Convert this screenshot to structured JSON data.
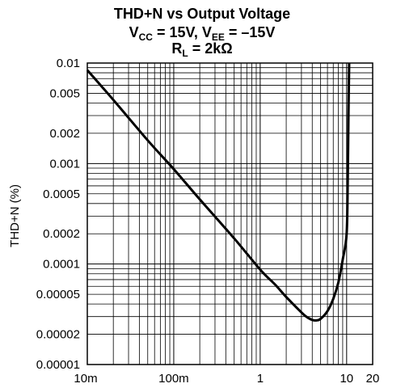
{
  "chart_data": {
    "type": "line",
    "title_line1": "THD+N vs Output Voltage",
    "title_line2": {
      "p1": "V",
      "s1": "CC",
      "p2": " = 15V, V",
      "s2": "EE",
      "p3": " = –15V"
    },
    "title_line3": {
      "p1": "R",
      "s1": "L",
      "p2": " = 2kΩ"
    },
    "xlabel": "",
    "ylabel": "THD+N (%)",
    "x_scale": "log",
    "y_scale": "log",
    "xlim": [
      0.01,
      20
    ],
    "ylim": [
      1e-05,
      0.01
    ],
    "grid": true,
    "x_ticks": [
      {
        "value": 0.01,
        "label": "10m"
      },
      {
        "value": 0.1,
        "label": "100m"
      },
      {
        "value": 1,
        "label": "1"
      },
      {
        "value": 10,
        "label": "10"
      },
      {
        "value": 20,
        "label": "20"
      }
    ],
    "y_ticks": [
      {
        "value": 0.01,
        "label": "0.01"
      },
      {
        "value": 0.005,
        "label": "0.005"
      },
      {
        "value": 0.002,
        "label": "0.002"
      },
      {
        "value": 0.001,
        "label": "0.001"
      },
      {
        "value": 0.0005,
        "label": "0.0005"
      },
      {
        "value": 0.0002,
        "label": "0.0002"
      },
      {
        "value": 0.0001,
        "label": "0.0001"
      },
      {
        "value": 5e-05,
        "label": "0.00005"
      },
      {
        "value": 2e-05,
        "label": "0.00002"
      },
      {
        "value": 1e-05,
        "label": "0.00001"
      }
    ],
    "series": [
      {
        "x": [
          0.01,
          0.02,
          0.05,
          0.1,
          0.2,
          0.5,
          1,
          1.5,
          2,
          3,
          3.5,
          4,
          4.5,
          5,
          6,
          7,
          8,
          9,
          10,
          10.3,
          10.5,
          10.7
        ],
        "y": [
          0.0085,
          0.0043,
          0.0017,
          0.00088,
          0.00044,
          0.00018,
          8.8e-05,
          6.2e-05,
          4.7e-05,
          3.3e-05,
          2.95e-05,
          2.78e-05,
          2.75e-05,
          2.85e-05,
          3.4e-05,
          4.5e-05,
          6.5e-05,
          0.00011,
          0.0002,
          0.0007,
          0.003,
          0.01
        ]
      }
    ]
  }
}
